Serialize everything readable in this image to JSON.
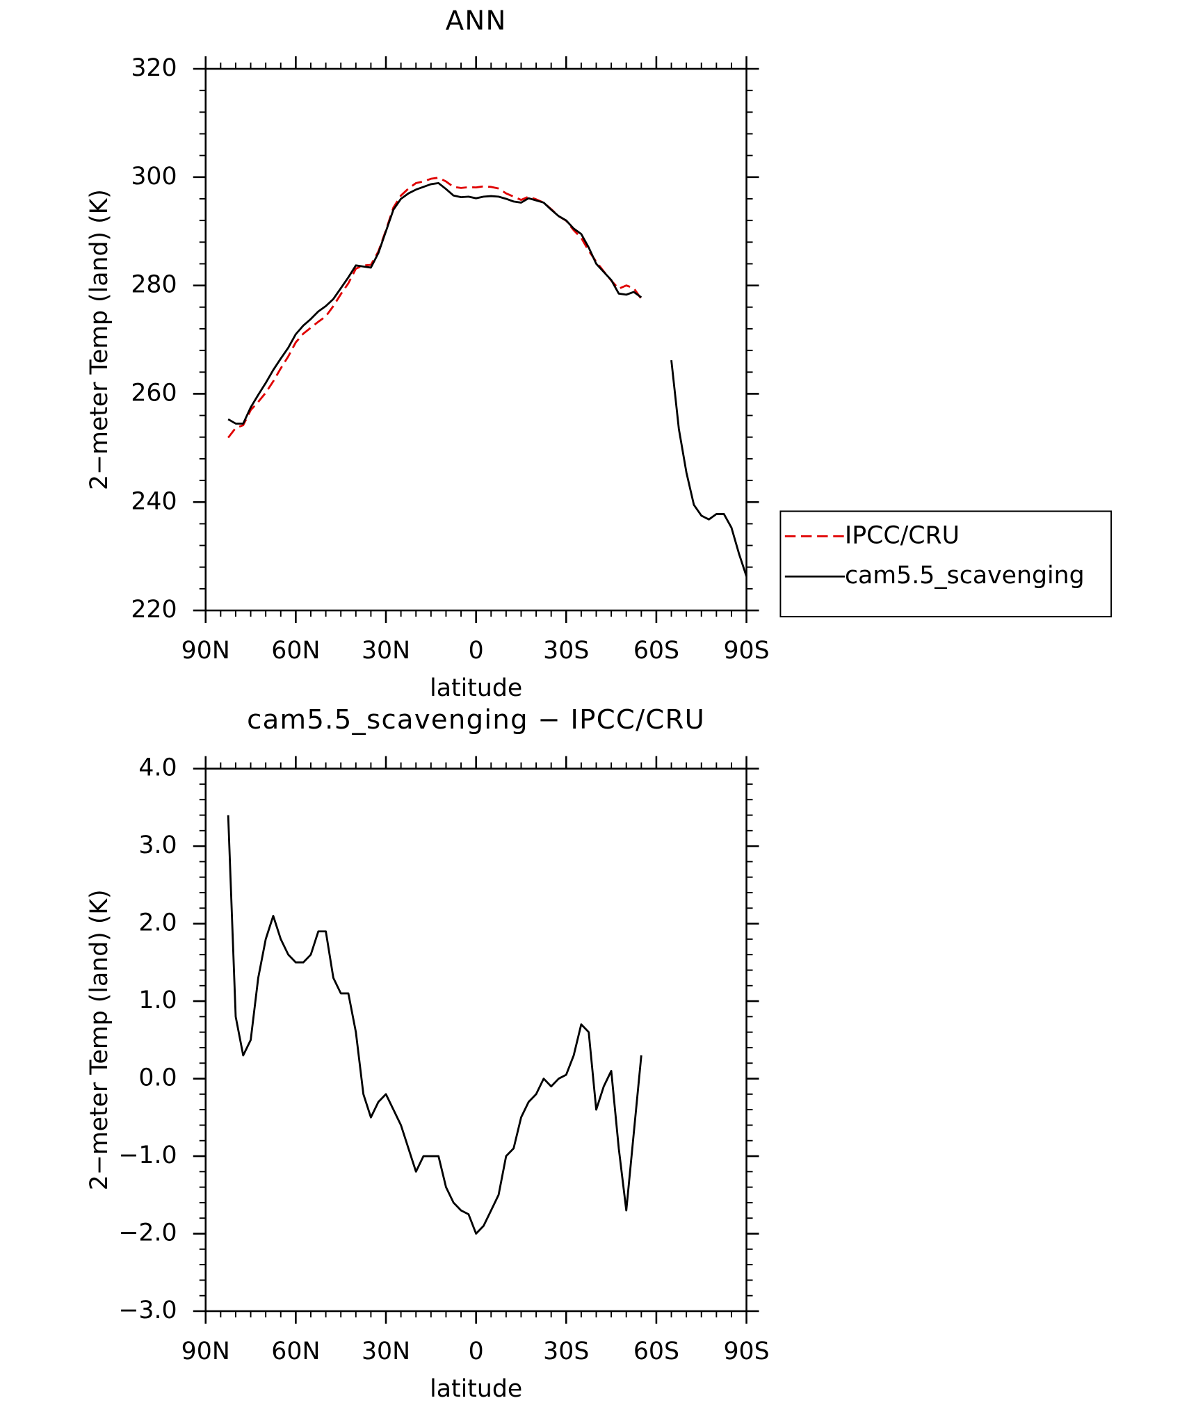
{
  "chart_data": [
    {
      "type": "line",
      "title": "ANN",
      "xlabel": "latitude",
      "ylabel": "2−meter Temp (land) (K)",
      "x": [
        82.5,
        80,
        77.5,
        75,
        72.5,
        70,
        67.5,
        65,
        62.5,
        60,
        57.5,
        55,
        52.5,
        50,
        47.5,
        45,
        42.5,
        40,
        37.5,
        35,
        32.5,
        30,
        27.5,
        25,
        22.5,
        20,
        17.5,
        15,
        12.5,
        10,
        7.5,
        5,
        2.5,
        0,
        -2.5,
        -5,
        -7.5,
        -10,
        -12.5,
        -15,
        -17.5,
        -20,
        -22.5,
        -25,
        -27.5,
        -30,
        -32.5,
        -35,
        -37.5,
        -40,
        -42.5,
        -45,
        -47.5,
        -50,
        -52.5,
        -55,
        -57.5,
        -60,
        -62.5,
        -65,
        -67.5,
        -70,
        -72.5,
        -75,
        -77.5,
        -80,
        -82.5,
        -85,
        -87.5,
        -90
      ],
      "series": [
        {
          "name": "IPCC/CRU",
          "color": "#e00000",
          "dashed": true,
          "values": [
            251.9,
            253.7,
            254.2,
            257.0,
            258.5,
            260.2,
            262.3,
            264.7,
            266.9,
            269.5,
            271.1,
            272.2,
            273.3,
            274.3,
            276.2,
            278.4,
            280.4,
            283.1,
            283.7,
            283.8,
            286.3,
            290.2,
            294.4,
            296.6,
            297.9,
            298.9,
            299.2,
            299.7,
            299.9,
            299.2,
            298.2,
            298.0,
            298.15,
            298.1,
            298.3,
            298.2,
            297.9,
            297.0,
            296.4,
            295.8,
            296.4,
            295.9,
            295.3,
            294.1,
            292.8,
            291.95,
            290.2,
            288.8,
            286.4,
            284.4,
            282.6,
            280.9,
            279.4,
            280.0,
            279.5,
            277.5,
            null,
            null,
            null,
            null,
            null,
            null,
            null,
            null,
            null,
            null,
            null,
            null,
            null,
            null
          ]
        },
        {
          "name": "cam5.5_scavenging",
          "color": "#000000",
          "dashed": false,
          "values": [
            255.3,
            254.5,
            254.5,
            257.5,
            259.8,
            262,
            264.4,
            266.5,
            268.5,
            271,
            272.6,
            273.8,
            275.2,
            276.2,
            277.5,
            279.5,
            281.5,
            283.7,
            283.5,
            283.3,
            286,
            290,
            294,
            296,
            297,
            297.7,
            298.2,
            298.7,
            298.9,
            297.8,
            296.6,
            296.3,
            296.4,
            296.1,
            296.4,
            296.5,
            296.4,
            296,
            295.5,
            295.3,
            296.1,
            295.7,
            295.3,
            294,
            292.8,
            292,
            290.5,
            289.5,
            287,
            284,
            282.5,
            281,
            278.5,
            278.3,
            278.8,
            277.8,
            null,
            null,
            null,
            266.2,
            253.5,
            245.5,
            239.5,
            237.5,
            236.8,
            237.8,
            237.8,
            235.3,
            230.5,
            226.3
          ]
        }
      ],
      "xlim": [
        90,
        -90
      ],
      "xticks": [
        {
          "value": 90,
          "label": "90N"
        },
        {
          "value": 60,
          "label": "60N"
        },
        {
          "value": 30,
          "label": "30N"
        },
        0,
        {
          "value": -30,
          "label": "30S"
        },
        {
          "value": -60,
          "label": "60S"
        },
        {
          "value": -90,
          "label": "90S"
        }
      ],
      "ylim": [
        220,
        320
      ],
      "yticks": [
        220,
        240,
        260,
        280,
        300,
        320
      ],
      "legend": "right"
    },
    {
      "type": "line",
      "title": "cam5.5_scavenging − IPCC/CRU",
      "xlabel": "latitude",
      "ylabel": "2−meter Temp (land) (K)",
      "x": [
        82.5,
        80,
        77.5,
        75,
        72.5,
        70,
        67.5,
        65,
        62.5,
        60,
        57.5,
        55,
        52.5,
        50,
        47.5,
        45,
        42.5,
        40,
        37.5,
        35,
        32.5,
        30,
        27.5,
        25,
        22.5,
        20,
        17.5,
        15,
        12.5,
        10,
        7.5,
        5,
        2.5,
        0,
        -2.5,
        -5,
        -7.5,
        -10,
        -12.5,
        -15,
        -17.5,
        -20,
        -22.5,
        -25,
        -27.5,
        -30,
        -32.5,
        -35,
        -37.5,
        -40,
        -42.5,
        -45,
        -47.5,
        -50,
        -52.5,
        -55
      ],
      "series": [
        {
          "color": "#000000",
          "dashed": false,
          "values": [
            3.4,
            0.8,
            0.3,
            0.5,
            1.3,
            1.8,
            2.1,
            1.8,
            1.6,
            1.5,
            1.5,
            1.6,
            1.9,
            1.9,
            1.3,
            1.1,
            1.1,
            0.6,
            -0.2,
            -0.5,
            -0.3,
            -0.2,
            -0.4,
            -0.6,
            -0.9,
            -1.2,
            -1.0,
            -1.0,
            -1.0,
            -1.4,
            -1.6,
            -1.7,
            -1.75,
            -2.0,
            -1.9,
            -1.7,
            -1.5,
            -1.0,
            -0.9,
            -0.5,
            -0.3,
            -0.2,
            0.0,
            -0.1,
            0.0,
            0.05,
            0.3,
            0.7,
            0.6,
            -0.4,
            -0.1,
            0.1,
            -0.9,
            -1.7,
            -0.7,
            0.3
          ]
        }
      ],
      "xlim": [
        90,
        -90
      ],
      "xticks": [
        {
          "value": 90,
          "label": "90N"
        },
        {
          "value": 60,
          "label": "60N"
        },
        {
          "value": 30,
          "label": "30N"
        },
        0,
        {
          "value": -30,
          "label": "30S"
        },
        {
          "value": -60,
          "label": "60S"
        },
        {
          "value": -90,
          "label": "90S"
        }
      ],
      "ylim": [
        -3,
        4
      ],
      "yticks": [
        {
          "value": -3,
          "label": "−3.0"
        },
        {
          "value": -2,
          "label": "−2.0"
        },
        {
          "value": -1,
          "label": "−1.0"
        },
        {
          "value": 0,
          "label": "0.0"
        },
        {
          "value": 1,
          "label": "1.0"
        },
        {
          "value": 2,
          "label": "2.0"
        },
        {
          "value": 3,
          "label": "3.0"
        },
        {
          "value": 4,
          "label": "4.0"
        }
      ]
    }
  ]
}
